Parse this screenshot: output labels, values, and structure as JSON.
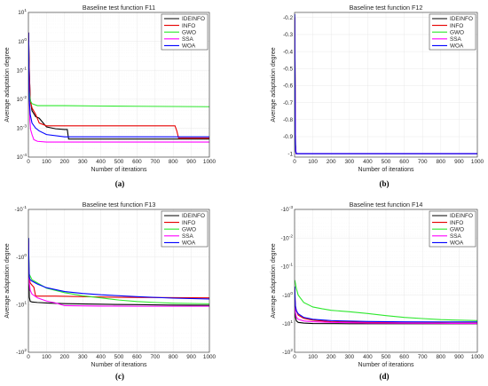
{
  "colors": {
    "IDEINFO": "#000000",
    "INFO": "#e60000",
    "GWO": "#2ee82e",
    "SSA": "#ff00ff",
    "WOA": "#0000ff"
  },
  "chart_data": [
    {
      "panel": "a",
      "type": "line",
      "title": "Baseline test function F11",
      "xlabel": "Number of iterations",
      "ylabel": "Average adaptation degree",
      "caption": "(a)",
      "xlim": [
        0,
        1000
      ],
      "xticks": [
        "0",
        "100",
        "200",
        "300",
        "400",
        "500",
        "600",
        "700",
        "800",
        "900",
        "1000"
      ],
      "yscale": "log",
      "ylim": [
        0.0001,
        10
      ],
      "yticks": [
        {
          "v": 0.0001,
          "m": "10",
          "e": "-4"
        },
        {
          "v": 0.001,
          "m": "10",
          "e": "-3"
        },
        {
          "v": 0.01,
          "m": "10",
          "e": "-2"
        },
        {
          "v": 0.1,
          "m": "10",
          "e": "-1"
        },
        {
          "v": 1,
          "m": "10",
          "e": "0"
        },
        {
          "v": 10,
          "m": "10",
          "e": "1"
        }
      ],
      "grid": true,
      "legend": "top-right",
      "series": [
        {
          "name": "IDEINFO",
          "x": [
            1,
            5,
            10,
            20,
            40,
            60,
            100,
            150,
            200,
            215,
            222,
            300,
            500,
            800,
            1000
          ],
          "y": [
            2,
            0.1,
            0.01,
            0.004,
            0.0025,
            0.0022,
            0.0011,
            0.00095,
            0.0009,
            0.0009,
            0.00042,
            0.00042,
            0.00042,
            0.00042,
            0.00042
          ]
        },
        {
          "name": "INFO",
          "x": [
            1,
            5,
            10,
            20,
            40,
            60,
            100,
            150,
            400,
            600,
            810,
            820,
            830,
            850,
            1000
          ],
          "y": [
            2,
            0.1,
            0.009,
            0.005,
            0.003,
            0.0015,
            0.0012,
            0.0012,
            0.0012,
            0.0012,
            0.0012,
            0.0008,
            0.00045,
            0.00045,
            0.00045
          ]
        },
        {
          "name": "GWO",
          "x": [
            1,
            3,
            5,
            10,
            20,
            50,
            100,
            200,
            400,
            600,
            800,
            1000
          ],
          "y": [
            1,
            0.1,
            0.02,
            0.009,
            0.007,
            0.006,
            0.006,
            0.006,
            0.0058,
            0.0057,
            0.0056,
            0.0055
          ]
        },
        {
          "name": "SSA",
          "x": [
            1,
            3,
            5,
            8,
            12,
            20,
            30,
            50,
            100,
            300,
            600,
            1000
          ],
          "y": [
            1,
            0.1,
            0.01,
            0.002,
            0.0009,
            0.0006,
            0.0004,
            0.00035,
            0.00033,
            0.00033,
            0.00033,
            0.00033
          ]
        },
        {
          "name": "WOA",
          "x": [
            1,
            3,
            5,
            10,
            20,
            40,
            60,
            100,
            200,
            400,
            700,
            1000
          ],
          "y": [
            2,
            0.1,
            0.01,
            0.003,
            0.0015,
            0.001,
            0.0008,
            0.0006,
            0.0005,
            0.0005,
            0.0005,
            0.0005
          ]
        }
      ]
    },
    {
      "panel": "b",
      "type": "line",
      "title": "Baseline test function F12",
      "xlabel": "Number of iterations",
      "ylabel": "Average adaptation degree",
      "caption": "(b)",
      "xlim": [
        0,
        1000
      ],
      "xticks": [
        "0",
        "100",
        "200",
        "300",
        "400",
        "500",
        "600",
        "700",
        "800",
        "900",
        "1000"
      ],
      "yscale": "linear",
      "ylim": [
        -1.02,
        -0.17
      ],
      "yticks": [
        {
          "v": -0.2,
          "t": "-0.2"
        },
        {
          "v": -0.3,
          "t": "-0.3"
        },
        {
          "v": -0.4,
          "t": "-0.4"
        },
        {
          "v": -0.5,
          "t": "-0.5"
        },
        {
          "v": -0.6,
          "t": "-0.6"
        },
        {
          "v": -0.7,
          "t": "-0.7"
        },
        {
          "v": -0.8,
          "t": "-0.8"
        },
        {
          "v": -0.9,
          "t": "-0.9"
        },
        {
          "v": -1.0,
          "t": "-1"
        }
      ],
      "grid": true,
      "legend": "top-right",
      "series": [
        {
          "name": "IDEINFO",
          "x": [
            1,
            3,
            5,
            8,
            12,
            20,
            1000
          ],
          "y": [
            -0.2,
            -0.6,
            -0.95,
            -1.0,
            -1.0,
            -1.0,
            -1.0
          ]
        },
        {
          "name": "INFO",
          "x": [
            1,
            3,
            5,
            8,
            12,
            20,
            1000
          ],
          "y": [
            -0.2,
            -0.6,
            -0.95,
            -1.0,
            -1.0,
            -1.0,
            -1.0
          ]
        },
        {
          "name": "GWO",
          "x": [
            1,
            3,
            5,
            8,
            12,
            20,
            1000
          ],
          "y": [
            -0.2,
            -0.6,
            -0.95,
            -1.0,
            -1.0,
            -1.0,
            -1.0
          ]
        },
        {
          "name": "SSA",
          "x": [
            1,
            3,
            5,
            8,
            12,
            20,
            1000
          ],
          "y": [
            -0.2,
            -0.6,
            -0.95,
            -1.0,
            -1.0,
            -1.0,
            -1.0
          ]
        },
        {
          "name": "WOA",
          "x": [
            1,
            2,
            4,
            6,
            10,
            20,
            1000
          ],
          "y": [
            -0.18,
            -0.5,
            -0.92,
            -0.99,
            -1.0,
            -1.0,
            -1.0
          ]
        }
      ]
    },
    {
      "panel": "c",
      "type": "line",
      "title": "Baseline test function F13",
      "xlabel": "Number of iterations",
      "ylabel": "Average adaptation degree",
      "caption": "(c)",
      "xlim": [
        0,
        1000
      ],
      "xticks": [
        "0",
        "100",
        "200",
        "300",
        "400",
        "500",
        "600",
        "700",
        "800",
        "900",
        "1000"
      ],
      "yscale": "neglog",
      "ylim": [
        0.1,
        100
      ],
      "yticks": [
        {
          "v": 0.1,
          "m": "-10",
          "e": "-1"
        },
        {
          "v": 1,
          "m": "-10",
          "e": "0"
        },
        {
          "v": 10,
          "m": "-10",
          "e": "1"
        },
        {
          "v": 100,
          "m": "-10",
          "e": "2"
        }
      ],
      "grid": true,
      "legend": "top-right",
      "series": [
        {
          "name": "IDEINFO",
          "x": [
            1,
            3,
            5,
            10,
            20,
            50,
            100,
            200,
            400,
            600,
            800,
            1000
          ],
          "y": [
            0.4,
            2.5,
            7,
            8.5,
            8.8,
            9,
            9.2,
            9.5,
            9.8,
            10,
            10.2,
            10.3
          ]
        },
        {
          "name": "INFO",
          "x": [
            1,
            3,
            5,
            10,
            20,
            30,
            40,
            150,
            300,
            500,
            700,
            1000
          ],
          "y": [
            0.5,
            1.6,
            2.8,
            3.5,
            3.9,
            4.3,
            6.6,
            6.6,
            6.8,
            7.0,
            7.1,
            7.2
          ]
        },
        {
          "name": "GWO",
          "x": [
            1,
            5,
            20,
            50,
            100,
            200,
            300,
            400,
            500,
            600,
            700,
            800,
            1000
          ],
          "y": [
            0.6,
            2.3,
            3.0,
            3.5,
            4.5,
            5.6,
            6.5,
            7.2,
            8.0,
            8.6,
            9.0,
            9.3,
            9.6
          ]
        },
        {
          "name": "SSA",
          "x": [
            1,
            3,
            5,
            10,
            20,
            50,
            100,
            150,
            200,
            400,
            600,
            800,
            1000
          ],
          "y": [
            0.5,
            2.0,
            3.5,
            5.0,
            6.0,
            7.2,
            8.4,
            9.2,
            10.5,
            10.7,
            10.8,
            10.8,
            10.8
          ]
        },
        {
          "name": "WOA",
          "x": [
            1,
            3,
            5,
            10,
            20,
            50,
            100,
            200,
            300,
            400,
            600,
            800,
            1000
          ],
          "y": [
            0.4,
            1.6,
            2.6,
            3.0,
            3.2,
            3.7,
            4.4,
            5.3,
            5.8,
            6.2,
            6.8,
            7.3,
            7.6
          ]
        }
      ]
    },
    {
      "panel": "d",
      "type": "line",
      "title": "Baseline test function F14",
      "xlabel": "Number of iterations",
      "ylabel": "Average adaptation degree",
      "caption": "(d)",
      "xlim": [
        0,
        1000
      ],
      "xticks": [
        "0",
        "100",
        "200",
        "300",
        "400",
        "500",
        "600",
        "700",
        "800",
        "900",
        "1000"
      ],
      "yscale": "neglog",
      "ylim": [
        0.001,
        100
      ],
      "yticks": [
        {
          "v": 0.001,
          "m": "-10",
          "e": "-3"
        },
        {
          "v": 0.01,
          "m": "-10",
          "e": "-2"
        },
        {
          "v": 0.1,
          "m": "-10",
          "e": "-1"
        },
        {
          "v": 1,
          "m": "-10",
          "e": "0"
        },
        {
          "v": 10,
          "m": "-10",
          "e": "1"
        },
        {
          "v": 100,
          "m": "-10",
          "e": "2"
        }
      ],
      "grid": true,
      "legend": "top-right",
      "series": [
        {
          "name": "IDEINFO",
          "x": [
            1,
            3,
            5,
            10,
            20,
            50,
            100,
            300,
            600,
            1000
          ],
          "y": [
            0.5,
            3,
            6,
            8,
            9,
            9.5,
            9.8,
            10,
            10,
            10
          ]
        },
        {
          "name": "INFO",
          "x": [
            1,
            3,
            5,
            10,
            20,
            50,
            100,
            200,
            400,
            600,
            800,
            1000
          ],
          "y": [
            0.6,
            1.5,
            2.5,
            3.5,
            5,
            6.5,
            7.5,
            8.5,
            9.0,
            9.3,
            9.5,
            9.6
          ]
        },
        {
          "name": "GWO",
          "x": [
            1,
            5,
            10,
            20,
            50,
            100,
            150,
            200,
            300,
            400,
            500,
            600,
            700,
            800,
            1000
          ],
          "y": [
            0.3,
            0.4,
            0.6,
            1.0,
            1.8,
            2.6,
            3.0,
            3.4,
            3.8,
            4.4,
            5.2,
            6.0,
            6.6,
            7.2,
            7.8
          ]
        },
        {
          "name": "SSA",
          "x": [
            1,
            3,
            5,
            10,
            20,
            50,
            100,
            200,
            400,
            600,
            800,
            1000
          ],
          "y": [
            0.6,
            2.0,
            4.0,
            6.0,
            7.0,
            8.0,
            8.5,
            9.0,
            9.5,
            9.6,
            9.7,
            9.8
          ]
        },
        {
          "name": "WOA",
          "x": [
            1,
            3,
            5,
            10,
            20,
            50,
            100,
            200,
            400,
            600,
            800,
            1000
          ],
          "y": [
            0.5,
            1.5,
            2.5,
            3.5,
            4.5,
            6.0,
            7.0,
            7.8,
            8.4,
            8.6,
            8.7,
            8.7
          ]
        }
      ]
    }
  ]
}
